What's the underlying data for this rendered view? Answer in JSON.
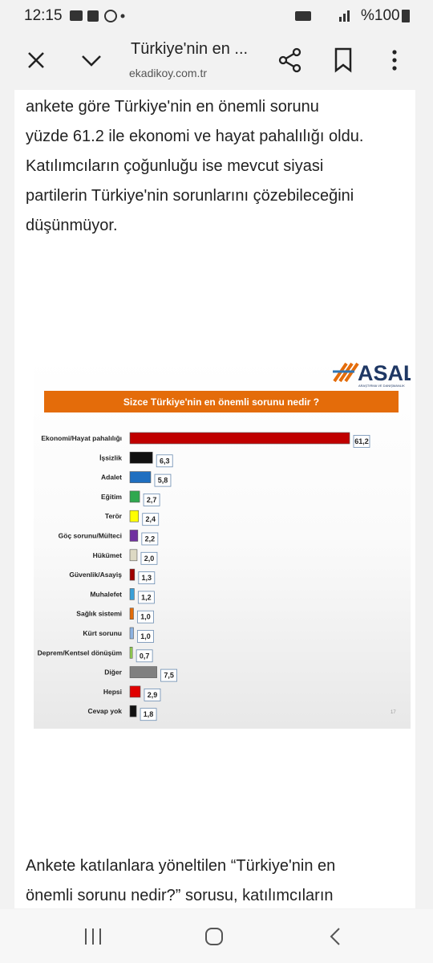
{
  "status_bar": {
    "time": "12:15",
    "battery": "%100"
  },
  "toolbar": {
    "title": "Türkiye'nin en ...",
    "url": "ekadikoy.com.tr"
  },
  "article": {
    "paragraph_1": [
      "ankete göre Türkiye'nin en önemli sorunu",
      "yüzde 61.2 ile ekonomi ve hayat pahalılığı oldu.",
      "Katılımcıların çoğunluğu ise mevcut siyasi",
      "partilerin Türkiye'nin sorunlarını çözebileceğini",
      "düşünmüyor."
    ],
    "paragraph_2": [
      "Ankete katılanlara yöneltilen “Türkiye'nin en",
      "önemli sorunu nedir?” sorusu, katılımcıların"
    ]
  },
  "chart_image": {
    "logo": "ASAL",
    "logo_subtitle": "ARAŞTIRMA VE DANIŞMANLIK",
    "page_number": "17"
  },
  "chart_data": {
    "type": "bar",
    "orientation": "horizontal",
    "title": "Sizce Türkiye'nin en önemli sorunu nedir ?",
    "categories": [
      "Ekonomi/Hayat pahalılığı",
      "İşsizlik",
      "Adalet",
      "Eğitim",
      "Terör",
      "Göç sorunu/Mülteci",
      "Hükümet",
      "Güvenlik/Asayiş",
      "Muhalefet",
      "Sağlık sistemi",
      "Kürt sorunu",
      "Deprem/Kentsel dönüşüm",
      "Diğer",
      "Hepsi",
      "Cevap yok"
    ],
    "values": [
      61.2,
      6.3,
      5.8,
      2.7,
      2.4,
      2.2,
      2.0,
      1.3,
      1.2,
      1.0,
      1.0,
      0.7,
      7.5,
      2.9,
      1.8
    ],
    "value_labels": [
      "61,2",
      "6,3",
      "5,8",
      "2,7",
      "2,4",
      "2,2",
      "2,0",
      "1,3",
      "1,2",
      "1,0",
      "1,0",
      "0,7",
      "7,5",
      "2,9",
      "1,8"
    ],
    "colors": [
      "#c00000",
      "#111111",
      "#1f6fc0",
      "#2fa84f",
      "#ffff00",
      "#7030a0",
      "#ddd9c3",
      "#a00000",
      "#3aa0d8",
      "#e36c09",
      "#8db3e2",
      "#92d050",
      "#808080",
      "#e00000",
      "#111111"
    ]
  }
}
